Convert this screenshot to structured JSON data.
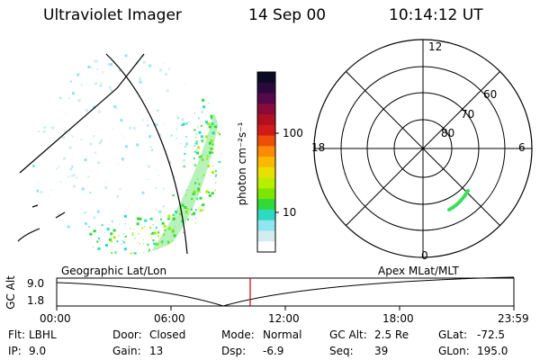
{
  "header": {
    "instrument": "Ultraviolet Imager",
    "date": "14 Sep 00",
    "time": "10:14:12 UT"
  },
  "colorbar": {
    "label": "photon cm⁻²s⁻¹",
    "ticks": [
      "100",
      "10"
    ],
    "colors": [
      "#0b0b23",
      "#2a0a3c",
      "#55084a",
      "#8a0a3a",
      "#b01020",
      "#d21a18",
      "#ee4d0c",
      "#fb8a05",
      "#fbb800",
      "#e8e000",
      "#b8ef00",
      "#7de600",
      "#32d93a",
      "#2ed9c2",
      "#8fe6f0",
      "#d2ecf0",
      "#ffffff"
    ]
  },
  "polar_plot": {
    "clock_labels": [
      "12",
      "18",
      "6",
      "0"
    ],
    "ring_labels": [
      "60",
      "70",
      "80"
    ]
  },
  "strip_chart": {
    "left_title": "Geographic Lat/Lon",
    "right_title": "Apex MLat/MLT",
    "ylabel": "GC Alt",
    "ytick_top": "9.0",
    "ytick_bottom": "1.8",
    "xticks": [
      "00:00",
      "06:00",
      "12:00",
      "18:00",
      "23:59"
    ],
    "marker_color": "#cc0000"
  },
  "info": {
    "filter_label": "Flt:",
    "filter_value": "LBHL",
    "ip_label": "IP:",
    "ip_value": "9.0",
    "door_label": "Door:",
    "door_value": "Closed",
    "gain_label": "Gain:",
    "gain_value": "13",
    "mode_label": "Mode:",
    "mode_value": "Normal",
    "dsp_label": "Dsp:",
    "dsp_value": "-6.9",
    "gcalt_label": "GC Alt:",
    "gcalt_value": "2.5 Re",
    "seq_label": "Seq:",
    "seq_value": "39",
    "glat_label": "GLat:",
    "glat_value": "-72.5",
    "glon_label": "GLon:",
    "glon_value": "195.0"
  }
}
